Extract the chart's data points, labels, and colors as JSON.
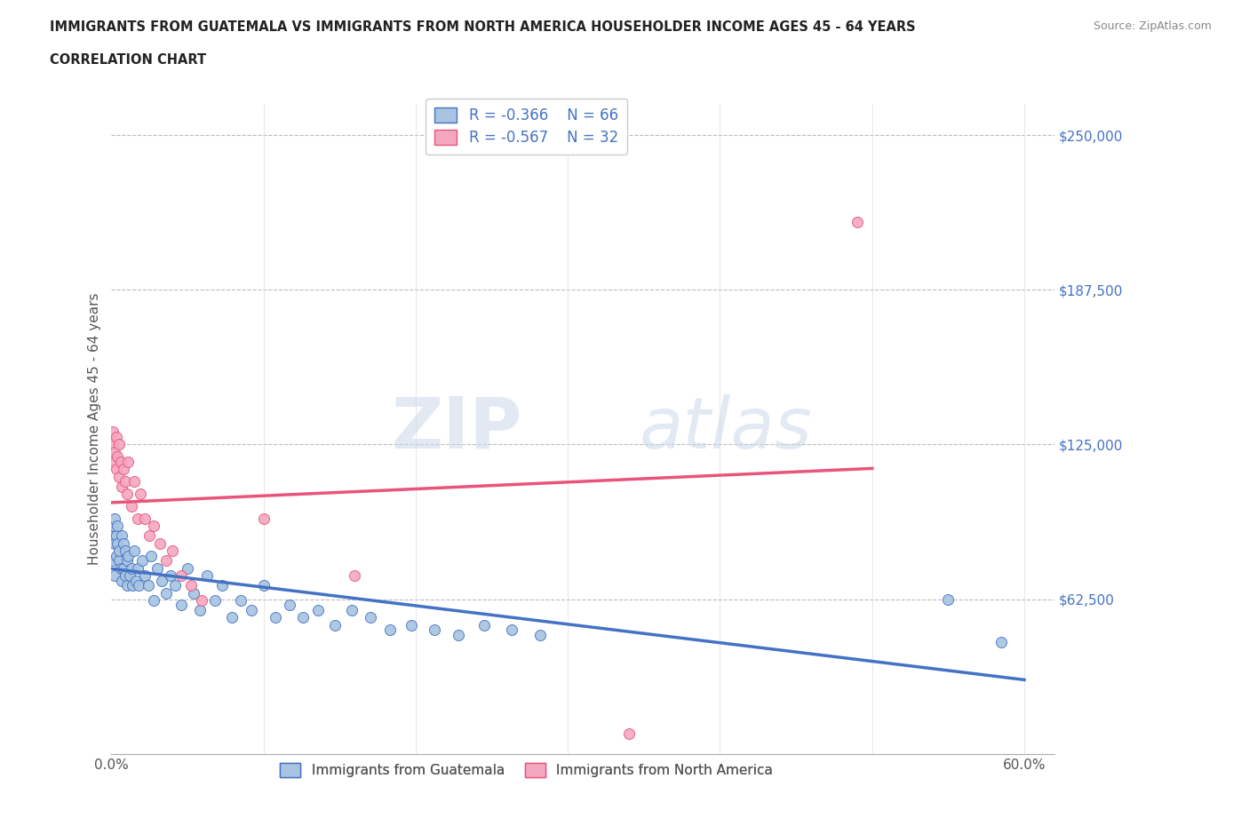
{
  "title_line1": "IMMIGRANTS FROM GUATEMALA VS IMMIGRANTS FROM NORTH AMERICA HOUSEHOLDER INCOME AGES 45 - 64 YEARS",
  "title_line2": "CORRELATION CHART",
  "source": "Source: ZipAtlas.com",
  "ylabel": "Householder Income Ages 45 - 64 years",
  "xlim": [
    0.0,
    0.62
  ],
  "ylim": [
    0,
    262500
  ],
  "yticks": [
    0,
    62500,
    125000,
    187500,
    250000
  ],
  "ytick_labels": [
    "",
    "$62,500",
    "$125,000",
    "$187,500",
    "$250,000"
  ],
  "xticks": [
    0.0,
    0.1,
    0.2,
    0.3,
    0.4,
    0.5,
    0.6
  ],
  "xtick_labels": [
    "0.0%",
    "",
    "",
    "",
    "",
    "",
    "60.0%"
  ],
  "r_guatemala": -0.366,
  "n_guatemala": 66,
  "r_north_america": -0.567,
  "n_north_america": 32,
  "color_guatemala": "#a8c4e0",
  "color_north_america": "#f4a8c0",
  "line_color_guatemala": "#4472c4",
  "line_color_north_america": "#e8547a",
  "watermark_zip": "ZIP",
  "watermark_atlas": "atlas",
  "guatemala_x": [
    0.001,
    0.001,
    0.001,
    0.002,
    0.002,
    0.002,
    0.003,
    0.003,
    0.004,
    0.004,
    0.005,
    0.005,
    0.006,
    0.007,
    0.007,
    0.008,
    0.008,
    0.009,
    0.009,
    0.01,
    0.01,
    0.011,
    0.012,
    0.013,
    0.014,
    0.015,
    0.016,
    0.017,
    0.018,
    0.02,
    0.022,
    0.024,
    0.026,
    0.028,
    0.03,
    0.033,
    0.036,
    0.039,
    0.042,
    0.046,
    0.05,
    0.054,
    0.058,
    0.063,
    0.068,
    0.073,
    0.079,
    0.085,
    0.092,
    0.1,
    0.108,
    0.117,
    0.126,
    0.136,
    0.147,
    0.158,
    0.17,
    0.183,
    0.197,
    0.212,
    0.228,
    0.245,
    0.263,
    0.282,
    0.55,
    0.585
  ],
  "guatemala_y": [
    88000,
    92000,
    78000,
    85000,
    95000,
    72000,
    88000,
    80000,
    85000,
    92000,
    78000,
    82000,
    75000,
    88000,
    70000,
    85000,
    75000,
    82000,
    72000,
    78000,
    68000,
    80000,
    72000,
    75000,
    68000,
    82000,
    70000,
    75000,
    68000,
    78000,
    72000,
    68000,
    80000,
    62000,
    75000,
    70000,
    65000,
    72000,
    68000,
    60000,
    75000,
    65000,
    58000,
    72000,
    62000,
    68000,
    55000,
    62000,
    58000,
    68000,
    55000,
    60000,
    55000,
    58000,
    52000,
    58000,
    55000,
    50000,
    52000,
    50000,
    48000,
    52000,
    50000,
    48000,
    62500,
    45000
  ],
  "north_america_x": [
    0.001,
    0.001,
    0.002,
    0.002,
    0.003,
    0.003,
    0.004,
    0.005,
    0.005,
    0.006,
    0.007,
    0.008,
    0.009,
    0.01,
    0.011,
    0.013,
    0.015,
    0.017,
    0.019,
    0.022,
    0.025,
    0.028,
    0.032,
    0.036,
    0.04,
    0.046,
    0.052,
    0.059,
    0.1,
    0.16,
    0.34,
    0.49
  ],
  "north_america_y": [
    130000,
    125000,
    122000,
    118000,
    128000,
    115000,
    120000,
    112000,
    125000,
    118000,
    108000,
    115000,
    110000,
    105000,
    118000,
    100000,
    110000,
    95000,
    105000,
    95000,
    88000,
    92000,
    85000,
    78000,
    82000,
    72000,
    68000,
    62000,
    95000,
    72000,
    8000,
    215000
  ]
}
